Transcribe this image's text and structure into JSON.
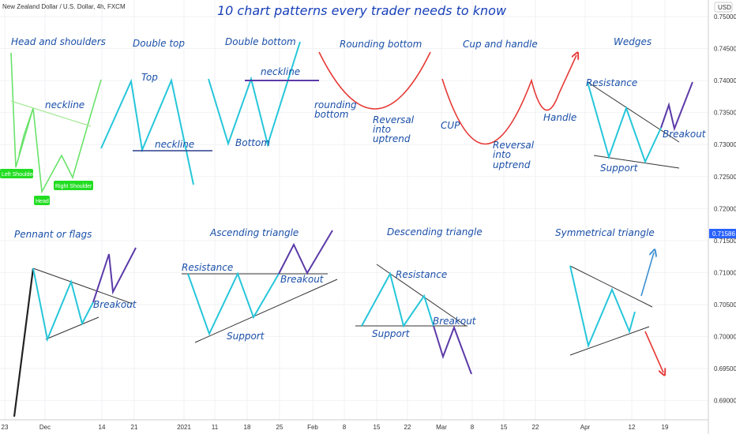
{
  "symbol_label": "New Zealand Dollar / U.S. Dollar, 4h, FXCM",
  "currency": "USD",
  "chart_data": {
    "type": "line",
    "title": "10 chart patterns every trader needs to know",
    "x_ticks": [
      "23",
      "Dec",
      "14",
      "21",
      "2021",
      "11",
      "18",
      "25",
      "Feb",
      "8",
      "15",
      "22",
      "Mar",
      "8",
      "15",
      "22",
      "Apr",
      "12",
      "19"
    ],
    "y_ticks": [
      "0.75000",
      "0.74500",
      "0.74000",
      "0.73500",
      "0.73000",
      "0.72500",
      "0.72000",
      "0.71500",
      "0.71000",
      "0.70500",
      "0.70000",
      "0.69500",
      "0.69000"
    ],
    "ylim": [
      0.6855,
      0.752
    ],
    "last_price": "0.71586",
    "pattern_titles": [
      "Head and shoulders",
      "Double top",
      "Double bottom",
      "Rounding bottom",
      "Cup and handle",
      "Wedges",
      "Pennant or flags",
      "Ascending triangle",
      "Descending triangle",
      "Symmetrical triangle"
    ],
    "annotations": [
      "neckline",
      "Top",
      "neckline",
      "Bottom",
      "neckline",
      "rounding",
      "bottom",
      "Reversal",
      "into",
      "uptrend",
      "CUP",
      "Reversal",
      "into",
      "uptrend",
      "Handle",
      "Resistance",
      "Breakout",
      "Support",
      "Breakout",
      "Resistance",
      "Breakout",
      "Support",
      "Resistance",
      "Breakout",
      "Support"
    ],
    "badges": [
      "Left Shoulder",
      "Head",
      "Right Shoulder"
    ],
    "colors": {
      "teal": "#26c6da",
      "green": "#69e26a",
      "purple": "#5b3aa8",
      "red": "#e53935",
      "dark": "#222222",
      "navy": "#2a3f8f",
      "blue_arrow": "#3d8fd0",
      "badge": "#22dd22"
    }
  }
}
